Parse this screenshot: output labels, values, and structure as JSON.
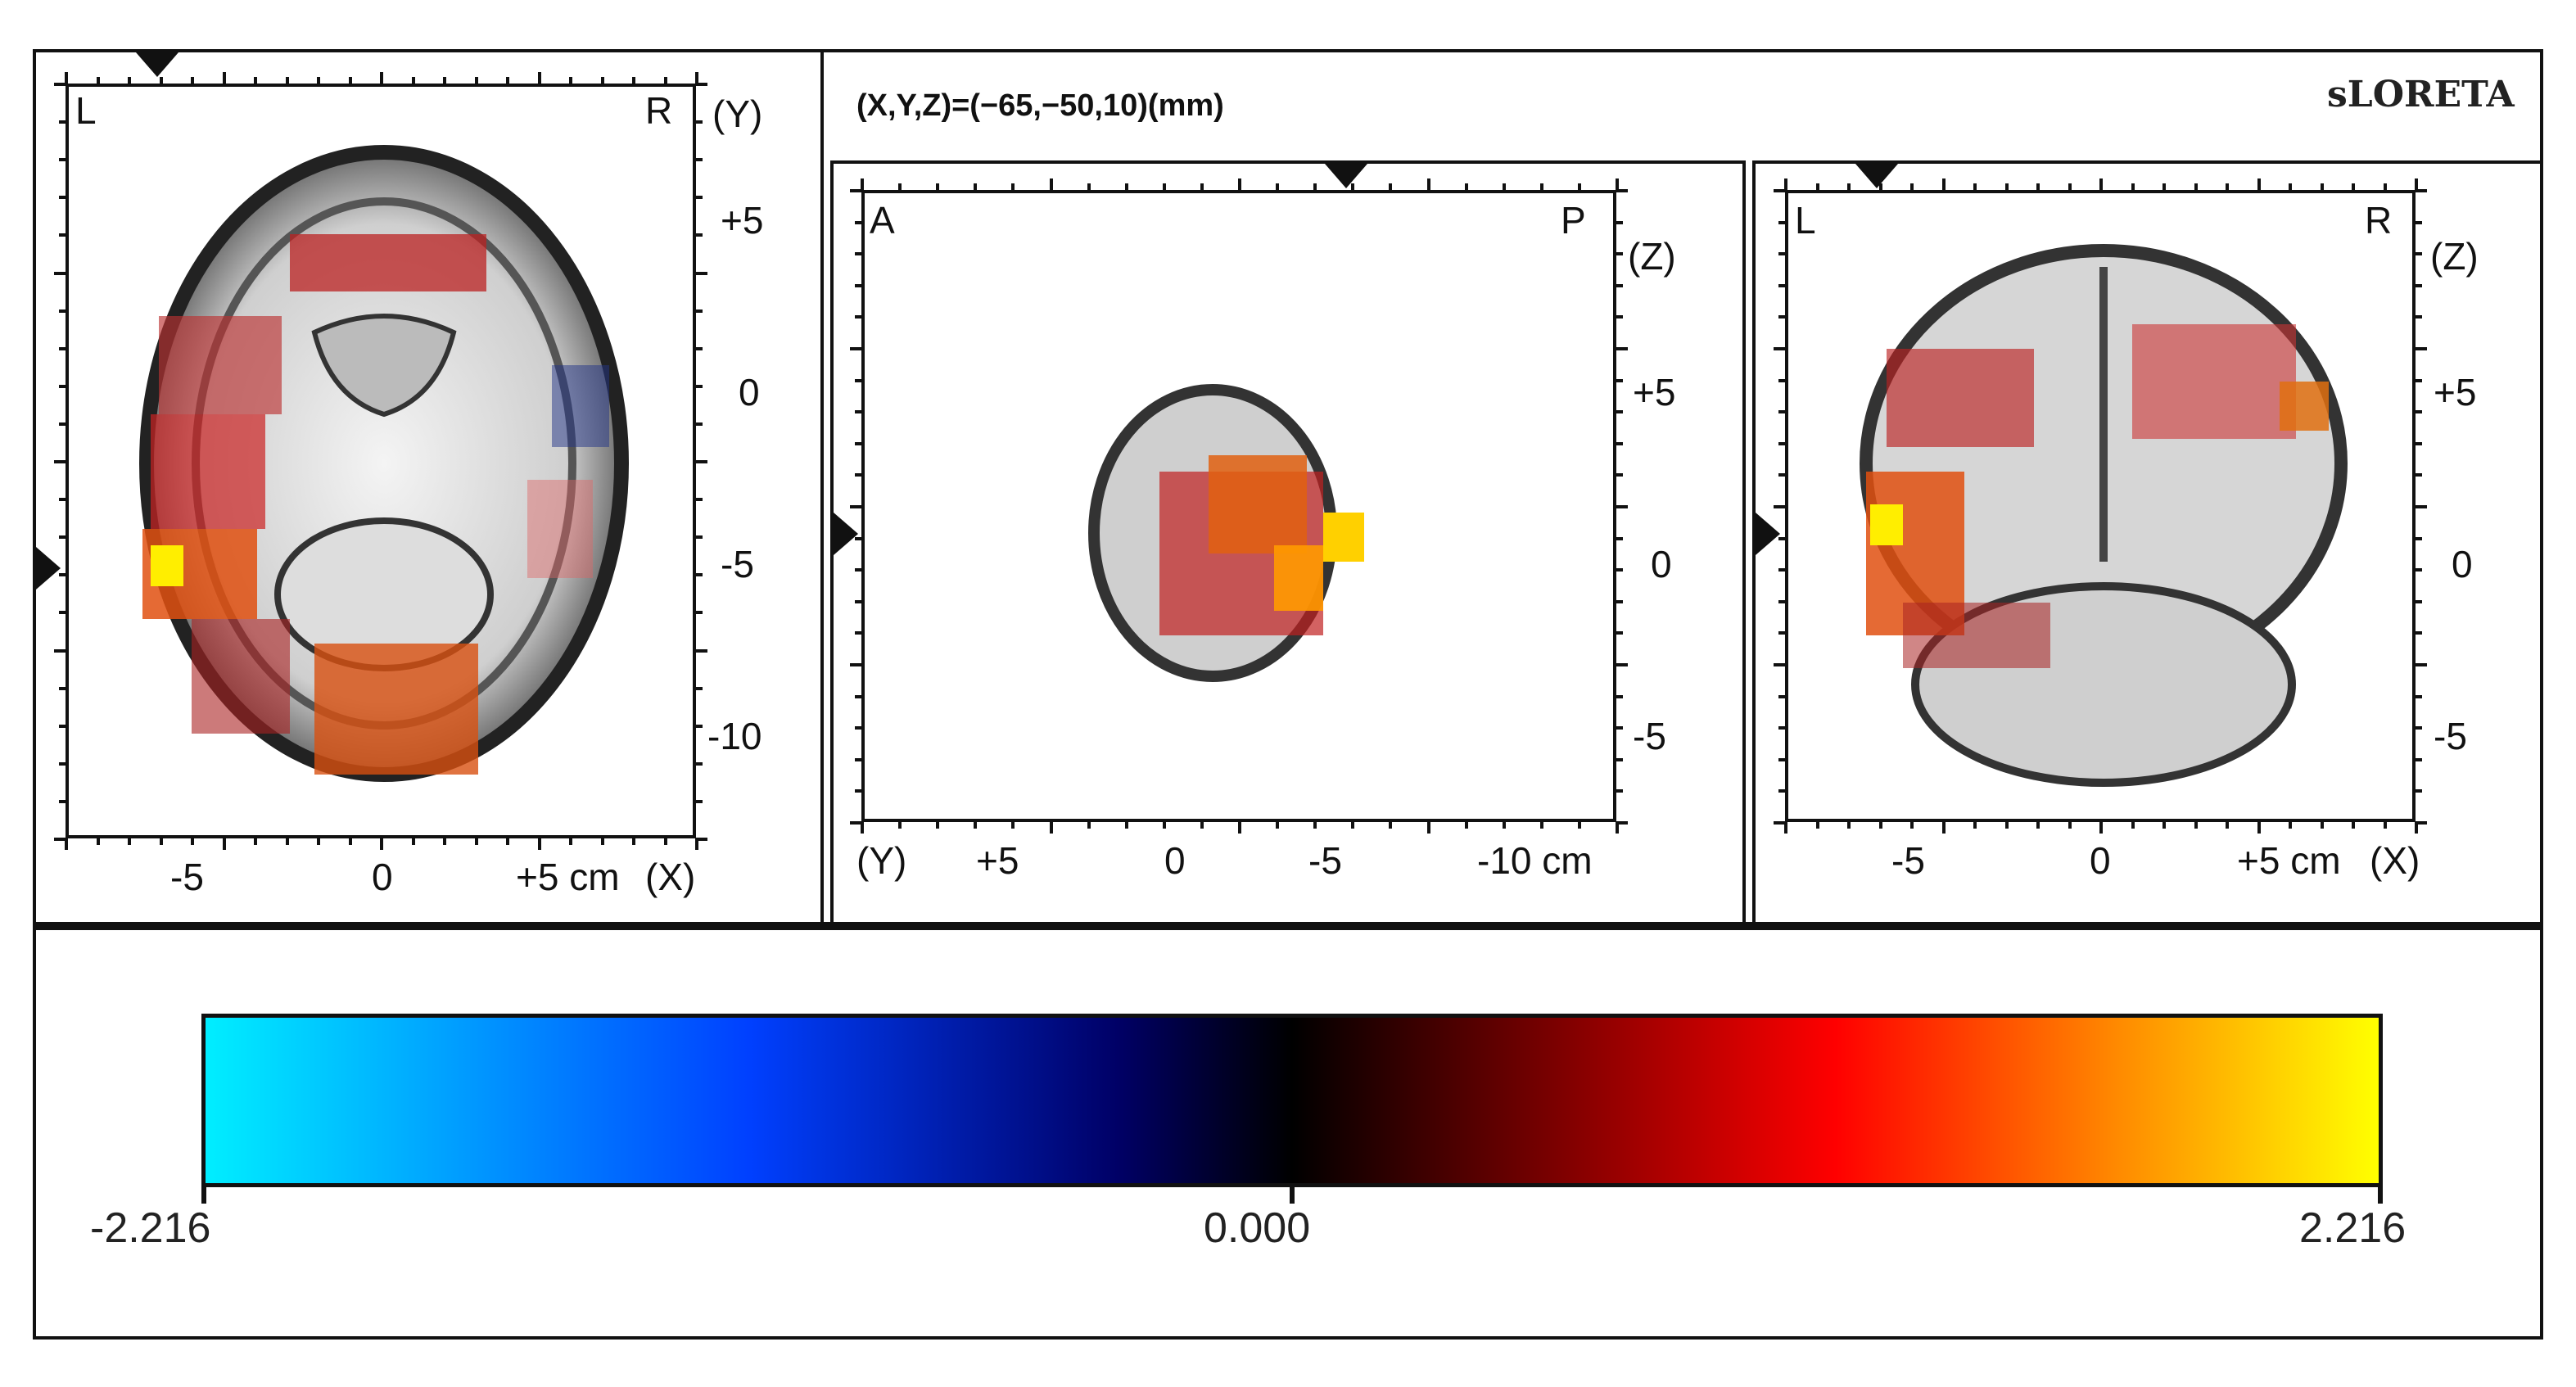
{
  "header": {
    "coordinates": "(X,Y,Z)=(−65,−50,10)(mm)",
    "brand": "sLORETA"
  },
  "views": {
    "axial": {
      "corner_left": "L",
      "corner_right": "R",
      "axis_right": "(Y)",
      "axis_bottom": "(X)",
      "y_ticks": [
        "+5",
        "0",
        "-5",
        "-10"
      ],
      "x_ticks": [
        "-5",
        "0",
        "+5 cm"
      ]
    },
    "sagittal": {
      "corner_left": "A",
      "corner_right": "P",
      "axis_right": "(Z)",
      "axis_bottom": "(Y)",
      "z_ticks": [
        "+5",
        "0",
        "-5"
      ],
      "y_ticks": [
        "+5",
        "0",
        "-5",
        "-10 cm"
      ]
    },
    "coronal": {
      "corner_left": "L",
      "corner_right": "R",
      "axis_right": "(Z)",
      "axis_bottom": "(X)",
      "z_ticks": [
        "+5",
        "0",
        "-5"
      ],
      "x_ticks": [
        "-5",
        "0",
        "+5 cm"
      ]
    }
  },
  "colorbar": {
    "min_label": "-2.216",
    "mid_label": "0.000",
    "max_label": "2.216",
    "colors": [
      "#00eeff",
      "#0040ff",
      "#000066",
      "#000000",
      "#7a0000",
      "#ff0000",
      "#ff8a00",
      "#ffff00"
    ]
  }
}
